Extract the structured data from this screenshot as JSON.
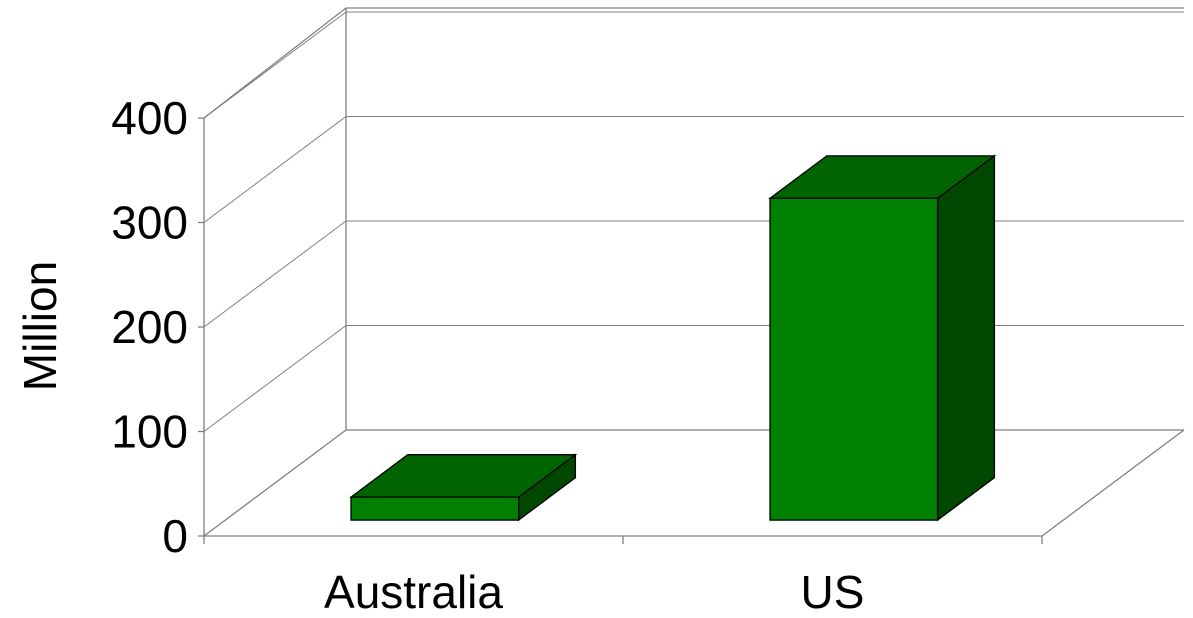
{
  "chart_data": {
    "type": "bar",
    "style": "3d-column",
    "categories": [
      "Australia",
      "US"
    ],
    "values": [
      22,
      308
    ],
    "ylabel": "Million",
    "ylim": [
      0,
      400
    ],
    "yticks": [
      "0",
      "100",
      "200",
      "300",
      "400"
    ],
    "grid": true,
    "legend": "none",
    "colors": {
      "bar_front": "#008000",
      "bar_top": "#006400",
      "bar_side": "#004800",
      "outline": "#000000",
      "grid": "#808080",
      "text": "#000000"
    }
  }
}
